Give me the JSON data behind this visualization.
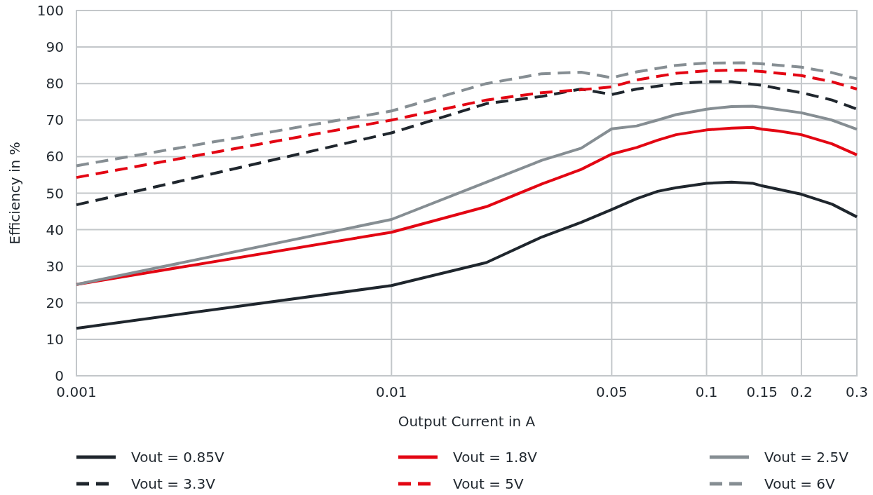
{
  "chart_data": {
    "type": "line",
    "xlabel": "Output Current in A",
    "ylabel": "Efficiency in %",
    "log": "x",
    "xlim": [
      0.001,
      0.3
    ],
    "xticks": [
      0.001,
      0.01,
      0.05,
      0.1,
      0.15,
      0.2,
      0.3
    ],
    "ylim": [
      0,
      100
    ],
    "yticks": [
      0,
      10,
      20,
      30,
      40,
      50,
      60,
      70,
      80,
      90,
      100
    ],
    "grid": true,
    "legend": "bottom",
    "series": [
      {
        "name": "Vout = 0.85V",
        "color": "#1f262d",
        "line_style": "solid",
        "x": [
          0.001,
          0.01,
          0.02,
          0.03,
          0.04,
          0.05,
          0.06,
          0.07,
          0.08,
          0.1,
          0.12,
          0.14,
          0.15,
          0.2,
          0.25,
          0.3
        ],
        "values": [
          13,
          24.7,
          31,
          38,
          42,
          45.5,
          48.5,
          50.5,
          51.5,
          52.7,
          53,
          52.7,
          52,
          49.7,
          47,
          43.5
        ]
      },
      {
        "name": "Vout = 1.8V",
        "color": "#e30613",
        "line_style": "solid",
        "x": [
          0.001,
          0.01,
          0.02,
          0.03,
          0.04,
          0.05,
          0.06,
          0.07,
          0.08,
          0.1,
          0.12,
          0.14,
          0.15,
          0.17,
          0.2,
          0.25,
          0.3
        ],
        "values": [
          25,
          39.3,
          46.3,
          52.5,
          56.5,
          60.7,
          62.5,
          64.5,
          66,
          67.3,
          67.8,
          68,
          67.5,
          67,
          66,
          63.5,
          60.5
        ]
      },
      {
        "name": "Vout = 2.5V",
        "color": "#868e93",
        "line_style": "solid",
        "x": [
          0.001,
          0.01,
          0.02,
          0.03,
          0.04,
          0.05,
          0.06,
          0.07,
          0.08,
          0.1,
          0.12,
          0.14,
          0.15,
          0.2,
          0.25,
          0.3
        ],
        "values": [
          25,
          42.8,
          53,
          59,
          62.3,
          67.6,
          68.4,
          70,
          71.5,
          73,
          73.7,
          73.8,
          73.5,
          72,
          70,
          67.5
        ]
      },
      {
        "name": "Vout = 3.3V",
        "color": "#1f262d",
        "line_style": "dashed",
        "x": [
          0.001,
          0.01,
          0.02,
          0.03,
          0.04,
          0.05,
          0.06,
          0.08,
          0.1,
          0.12,
          0.15,
          0.2,
          0.25,
          0.3
        ],
        "values": [
          46.8,
          66.5,
          74.5,
          76.5,
          78.5,
          77,
          78.5,
          80,
          80.5,
          80.5,
          79.5,
          77.5,
          75.5,
          73
        ]
      },
      {
        "name": "Vout = 5V",
        "color": "#e30613",
        "line_style": "dashed",
        "x": [
          0.001,
          0.01,
          0.02,
          0.03,
          0.04,
          0.05,
          0.06,
          0.08,
          0.1,
          0.13,
          0.15,
          0.2,
          0.25,
          0.3
        ],
        "values": [
          54.3,
          70,
          75.5,
          77.5,
          78.3,
          79.1,
          81,
          82.8,
          83.5,
          83.7,
          83.3,
          82.2,
          80.5,
          78.5
        ]
      },
      {
        "name": "Vout = 6V",
        "color": "#868e93",
        "line_style": "dashed",
        "x": [
          0.001,
          0.01,
          0.02,
          0.03,
          0.04,
          0.05,
          0.06,
          0.08,
          0.1,
          0.13,
          0.15,
          0.2,
          0.25,
          0.3
        ],
        "values": [
          57.5,
          72.5,
          80,
          82.7,
          83.1,
          81.6,
          83.2,
          85,
          85.6,
          85.7,
          85.4,
          84.5,
          83,
          81.3
        ]
      }
    ]
  }
}
